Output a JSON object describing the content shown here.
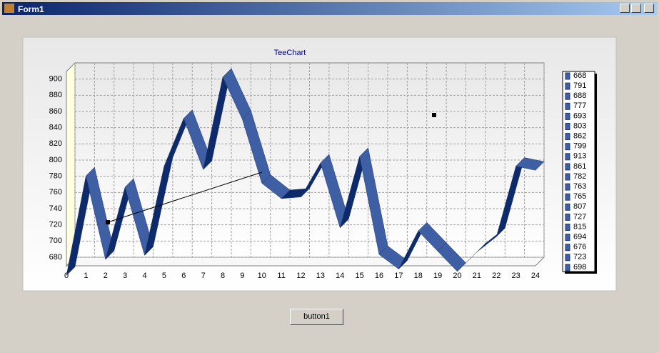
{
  "window": {
    "title": "Form1"
  },
  "chart_data": {
    "type": "line",
    "title": "TeeChart",
    "x": [
      0,
      1,
      2,
      3,
      4,
      5,
      6,
      7,
      8,
      9,
      10,
      11,
      12,
      13,
      14,
      15,
      16,
      17,
      18,
      19,
      20,
      21,
      22,
      23,
      24
    ],
    "values": [
      668,
      791,
      688,
      777,
      693,
      803,
      862,
      799,
      913,
      861,
      782,
      763,
      765,
      807,
      727,
      815,
      694,
      676,
      723,
      698,
      673,
      697,
      716,
      803,
      798
    ],
    "color": "#3f5fa5",
    "xlim": [
      0,
      24
    ],
    "xticks": [
      0,
      1,
      2,
      3,
      4,
      5,
      6,
      7,
      8,
      9,
      10,
      11,
      12,
      13,
      14,
      15,
      16,
      17,
      18,
      19,
      20,
      21,
      22,
      23,
      24
    ],
    "ylim": [
      680,
      920
    ],
    "yticks": [
      680,
      700,
      720,
      740,
      760,
      780,
      800,
      820,
      840,
      860,
      880,
      900
    ],
    "grid": true,
    "legend": "right"
  },
  "button": {
    "label": "button1"
  }
}
